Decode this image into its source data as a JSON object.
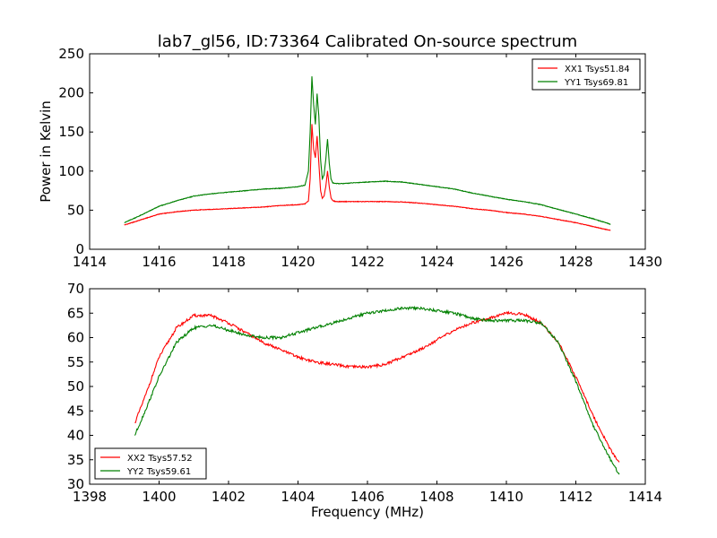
{
  "figure": {
    "title": "lab7_gl56, ID:73364 Calibrated On-source spectrum",
    "xlabel": "Frequency (MHz)",
    "ylabel": "Power in Kelvin"
  },
  "colors": {
    "xx": "#ff0000",
    "yy": "#008000"
  },
  "chart_data": [
    {
      "type": "line",
      "title": "lab7_gl56, ID:73364 Calibrated On-source spectrum",
      "xlabel": "",
      "ylabel": "Power in Kelvin",
      "xlim": [
        1414,
        1430
      ],
      "ylim": [
        0,
        250
      ],
      "xticks": [
        1414,
        1416,
        1418,
        1420,
        1422,
        1424,
        1426,
        1428,
        1430
      ],
      "yticks": [
        0,
        50,
        100,
        150,
        200,
        250
      ],
      "legend": "top-right",
      "series": [
        {
          "name": "XX1 Tsys51.84",
          "color": "#ff0000",
          "x": [
            1415.0,
            1415.5,
            1416.0,
            1416.5,
            1417.0,
            1417.5,
            1418.0,
            1418.5,
            1419.0,
            1419.5,
            1420.0,
            1420.2,
            1420.3,
            1420.35,
            1420.4,
            1420.45,
            1420.5,
            1420.55,
            1420.6,
            1420.65,
            1420.7,
            1420.75,
            1420.8,
            1420.85,
            1420.9,
            1420.95,
            1421.0,
            1421.1,
            1421.3,
            1421.6,
            1422.0,
            1422.5,
            1423.0,
            1423.5,
            1424.0,
            1424.5,
            1425.0,
            1425.5,
            1426.0,
            1426.5,
            1427.0,
            1427.5,
            1428.0,
            1428.5,
            1429.0
          ],
          "y": [
            31,
            38,
            45,
            48,
            50,
            51,
            52,
            53,
            54,
            56,
            57,
            58,
            62,
            90,
            160,
            128,
            117,
            145,
            110,
            75,
            65,
            68,
            80,
            100,
            80,
            66,
            62,
            61,
            61,
            61,
            61,
            61,
            60.5,
            59,
            57,
            55,
            52,
            50,
            47,
            45,
            42,
            38,
            34,
            29,
            24
          ]
        },
        {
          "name": "YY1 Tsys69.81",
          "color": "#008000",
          "x": [
            1415.0,
            1415.5,
            1416.0,
            1416.5,
            1417.0,
            1417.5,
            1418.0,
            1418.5,
            1419.0,
            1419.5,
            1420.0,
            1420.2,
            1420.3,
            1420.35,
            1420.4,
            1420.45,
            1420.5,
            1420.55,
            1420.6,
            1420.65,
            1420.7,
            1420.75,
            1420.8,
            1420.85,
            1420.9,
            1420.95,
            1421.0,
            1421.1,
            1421.3,
            1421.6,
            1422.0,
            1422.5,
            1423.0,
            1423.5,
            1424.0,
            1424.5,
            1425.0,
            1425.5,
            1426.0,
            1426.5,
            1427.0,
            1427.5,
            1428.0,
            1428.5,
            1429.0
          ],
          "y": [
            34,
            44,
            55,
            62,
            68,
            71,
            73,
            75,
            77,
            78,
            80,
            82,
            100,
            150,
            221,
            185,
            160,
            199,
            170,
            115,
            90,
            95,
            115,
            141,
            110,
            90,
            85,
            84,
            84,
            85,
            86,
            87,
            86,
            83,
            80,
            77,
            72,
            68,
            64,
            61,
            57,
            51,
            45,
            39,
            32
          ]
        }
      ]
    },
    {
      "type": "line",
      "title": "",
      "xlabel": "Frequency (MHz)",
      "ylabel": "",
      "xlim": [
        1398,
        1414
      ],
      "ylim": [
        30,
        70
      ],
      "xticks": [
        1398,
        1400,
        1402,
        1404,
        1406,
        1408,
        1410,
        1412,
        1414
      ],
      "yticks": [
        30,
        35,
        40,
        45,
        50,
        55,
        60,
        65,
        70
      ],
      "legend": "bottom-left",
      "series": [
        {
          "name": "XX2 Tsys57.52",
          "color": "#ff0000",
          "x": [
            1399.3,
            1399.6,
            1400.0,
            1400.5,
            1401.0,
            1401.5,
            1402.0,
            1402.5,
            1403.0,
            1403.5,
            1404.0,
            1404.5,
            1405.0,
            1405.5,
            1406.0,
            1406.5,
            1407.0,
            1407.5,
            1408.0,
            1408.5,
            1409.0,
            1409.5,
            1410.0,
            1410.5,
            1411.0,
            1411.5,
            1412.0,
            1412.5,
            1413.0,
            1413.25
          ],
          "y": [
            42.5,
            48,
            56,
            62,
            64.5,
            64.5,
            63,
            61,
            59,
            57.5,
            56,
            55,
            54.5,
            54,
            54,
            54.5,
            56,
            57.5,
            59.5,
            61.5,
            63,
            64,
            65,
            64.8,
            63,
            59,
            52,
            44,
            37,
            34.5
          ]
        },
        {
          "name": "YY2 Tsys59.61",
          "color": "#008000",
          "x": [
            1399.3,
            1399.6,
            1400.0,
            1400.5,
            1401.0,
            1401.5,
            1402.0,
            1402.5,
            1403.0,
            1403.5,
            1404.0,
            1404.5,
            1405.0,
            1405.5,
            1406.0,
            1406.5,
            1407.0,
            1407.5,
            1408.0,
            1408.5,
            1409.0,
            1409.5,
            1410.0,
            1410.5,
            1411.0,
            1411.5,
            1412.0,
            1412.5,
            1413.0,
            1413.25
          ],
          "y": [
            40,
            45,
            52,
            59,
            62,
            62.5,
            61.5,
            60.5,
            60,
            60,
            61,
            62,
            63,
            64,
            65,
            65.5,
            66,
            66,
            65.5,
            65,
            64,
            63.5,
            63.5,
            63.5,
            63,
            59,
            51,
            42,
            35,
            32
          ]
        }
      ]
    }
  ]
}
